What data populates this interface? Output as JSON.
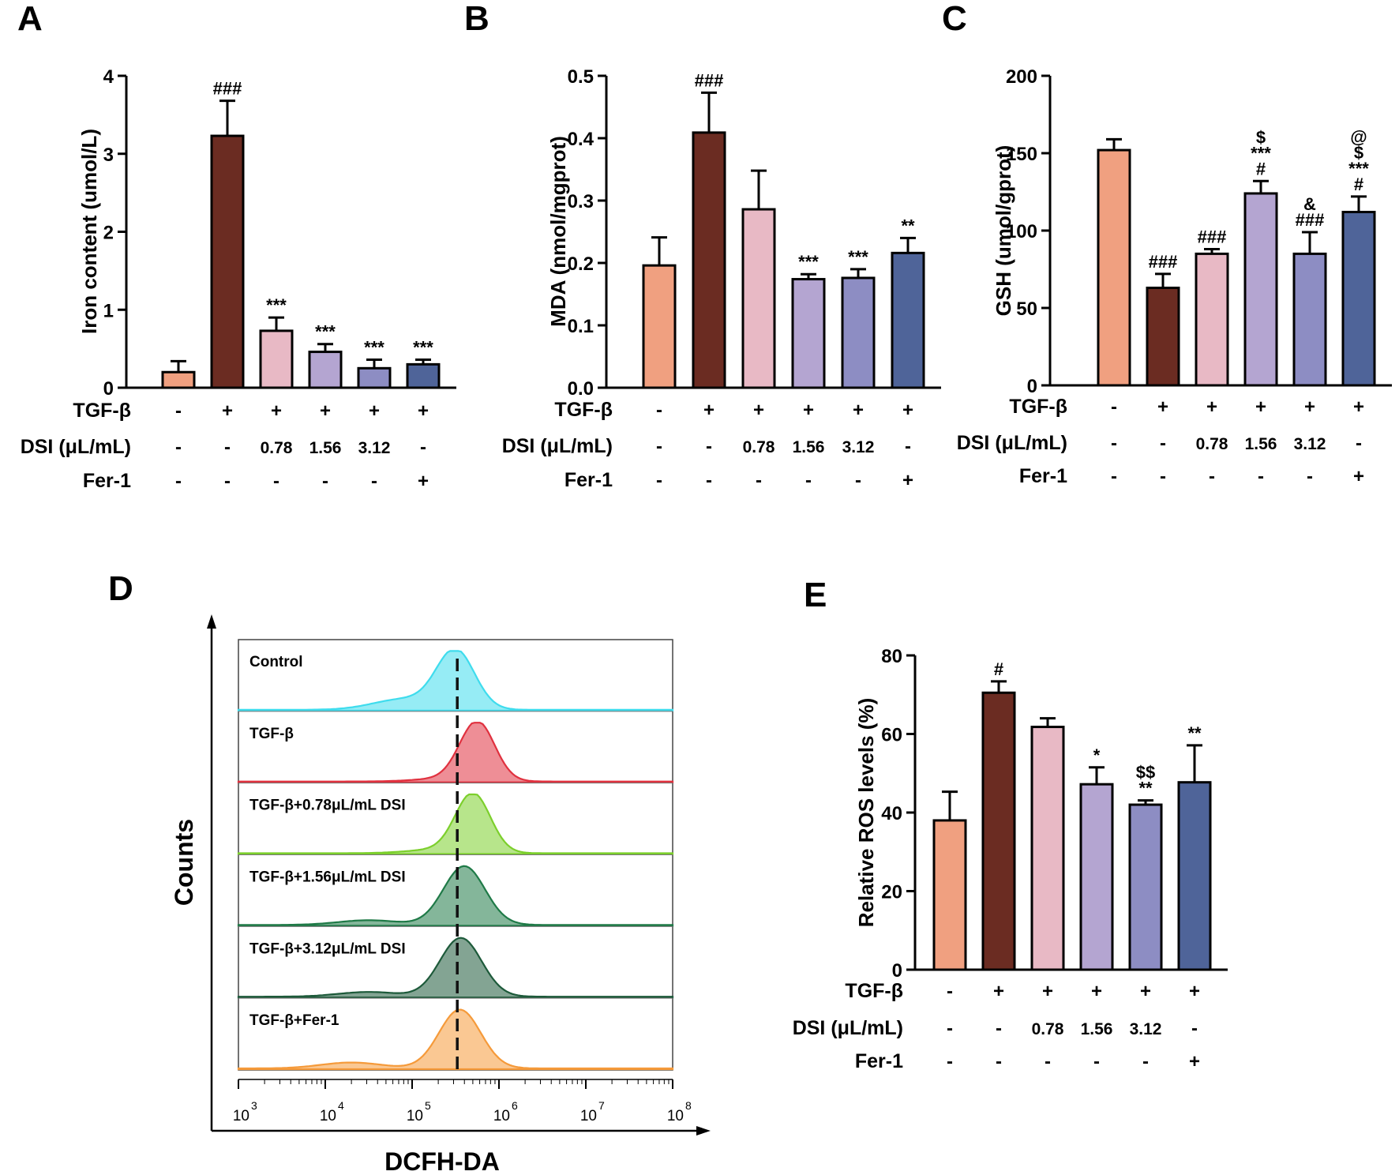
{
  "figure": {
    "colors": [
      "#f0a080",
      "#6b2c22",
      "#e8b9c5",
      "#b4a5d1",
      "#8d8dc3",
      "#4f6499"
    ],
    "row_labels": [
      "TGF-β",
      "DSI (μL/mL)",
      "Fer-1"
    ],
    "group_rows": [
      [
        "-",
        "+",
        "+",
        "+",
        "+",
        "+"
      ],
      [
        "-",
        "-",
        "0.78",
        "1.56",
        "3.12",
        "-"
      ],
      [
        "-",
        "-",
        "-",
        "-",
        "-",
        "+"
      ]
    ]
  },
  "chart_data": [
    {
      "panel": "A",
      "type": "bar",
      "ylabel": "Iron content (umol/L)",
      "ylim": [
        0,
        4
      ],
      "yticks": [
        "0",
        "1",
        "2",
        "3",
        "4"
      ],
      "values": [
        0.2,
        3.23,
        0.73,
        0.46,
        0.25,
        0.3
      ],
      "errors": [
        0.14,
        0.45,
        0.17,
        0.1,
        0.11,
        0.06
      ],
      "annotations": [
        [],
        [
          "###"
        ],
        [
          "***"
        ],
        [
          "***"
        ],
        [
          "***"
        ],
        [
          "***"
        ]
      ]
    },
    {
      "panel": "B",
      "type": "bar",
      "ylabel": "MDA (nmol/mgprot)",
      "ylim": [
        0,
        0.5
      ],
      "yticks": [
        "0.0",
        "0.1",
        "0.2",
        "0.3",
        "0.4",
        "0.5"
      ],
      "values": [
        0.196,
        0.409,
        0.286,
        0.174,
        0.176,
        0.216
      ],
      "errors": [
        0.045,
        0.064,
        0.062,
        0.008,
        0.014,
        0.024
      ],
      "annotations": [
        [],
        [
          "###"
        ],
        [],
        [
          "***"
        ],
        [
          "***"
        ],
        [
          "**"
        ]
      ]
    },
    {
      "panel": "C",
      "type": "bar",
      "ylabel": "GSH (umol/gprot)",
      "ylim": [
        0,
        200
      ],
      "yticks": [
        "0",
        "50",
        "100",
        "150",
        "200"
      ],
      "values": [
        152,
        63,
        85,
        124,
        85,
        112
      ],
      "errors": [
        7,
        9,
        3,
        8,
        14,
        10
      ],
      "annotations": [
        [],
        [
          "###"
        ],
        [
          "###"
        ],
        [
          "$",
          "***",
          "#"
        ],
        [
          "&",
          "###"
        ],
        [
          "@",
          "$",
          "***",
          "#"
        ]
      ]
    },
    {
      "panel": "E",
      "type": "bar",
      "ylabel": "Relative ROS levels (%)",
      "ylim": [
        0,
        80
      ],
      "yticks": [
        "0",
        "20",
        "40",
        "60",
        "80"
      ],
      "values": [
        38,
        70.5,
        61.8,
        47.2,
        42,
        47.7
      ],
      "errors": [
        7.3,
        2.9,
        2.2,
        4.3,
        1.1,
        9.4
      ],
      "annotations": [
        [],
        [
          "#"
        ],
        [],
        [
          "*"
        ],
        [
          "$$",
          "**"
        ],
        [
          "**"
        ]
      ]
    },
    {
      "panel": "D",
      "type": "histogram",
      "xlabel": "DCFH-DA",
      "ylabel": "Counts",
      "x_scale": "log10",
      "xlim": [
        1000,
        100000000
      ],
      "xticks": [
        {
          "base": "10",
          "exp": "3"
        },
        {
          "base": "10",
          "exp": "4"
        },
        {
          "base": "10",
          "exp": "5"
        },
        {
          "base": "10",
          "exp": "6"
        },
        {
          "base": "10",
          "exp": "7"
        },
        {
          "base": "10",
          "exp": "8"
        }
      ],
      "reference_line_log": 5.52,
      "series": [
        {
          "name": "Control",
          "color": "#3fdced",
          "peak_log": 5.5,
          "width": 0.22,
          "shoulder_log": 4.9,
          "shoulder_amp": 0.18
        },
        {
          "name": "TGF-β",
          "color": "#e0313f",
          "peak_log": 5.75,
          "width": 0.2,
          "shoulder_log": 5.4,
          "shoulder_amp": 0.05
        },
        {
          "name": "TGF-β+0.78μL/mL DSI",
          "color": "#7ccf2c",
          "peak_log": 5.7,
          "width": 0.2,
          "shoulder_log": 5.3,
          "shoulder_amp": 0.06
        },
        {
          "name": "TGF-β+1.56μL/mL DSI",
          "color": "#1f7a47",
          "peak_log": 5.6,
          "width": 0.24,
          "shoulder_log": 4.5,
          "shoulder_amp": 0.08
        },
        {
          "name": "TGF-β+3.12μL/mL DSI",
          "color": "#1d5a3a",
          "peak_log": 5.56,
          "width": 0.24,
          "shoulder_log": 4.5,
          "shoulder_amp": 0.08
        },
        {
          "name": "TGF-β+Fer-1",
          "color": "#f59a3a",
          "peak_log": 5.55,
          "width": 0.24,
          "shoulder_log": 4.3,
          "shoulder_amp": 0.1
        }
      ]
    }
  ]
}
